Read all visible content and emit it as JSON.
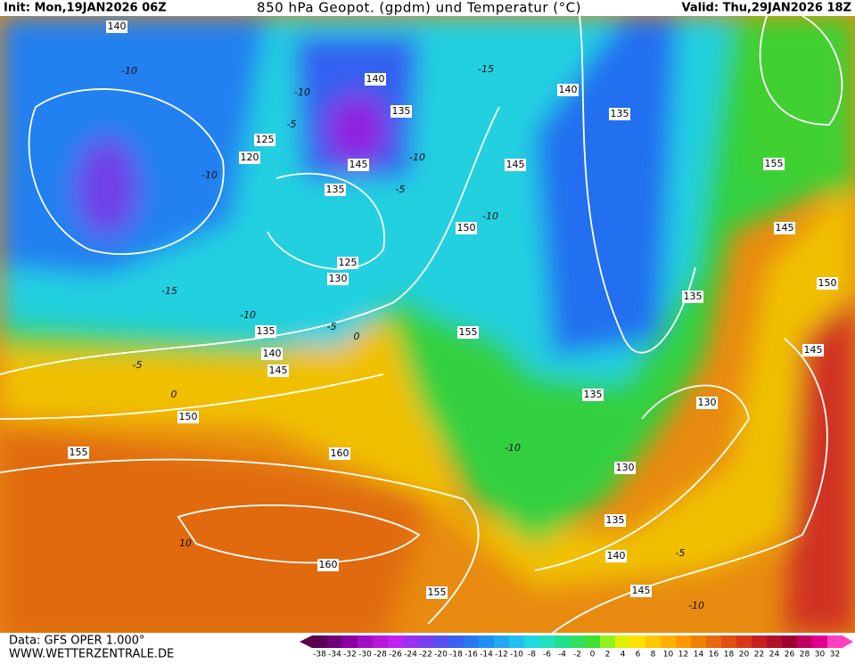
{
  "header": {
    "init": "Init: Mon,19JAN2026 06Z",
    "title": "850 hPa Geopot. (gpdm) und Temperatur (°C)",
    "valid": "Valid: Thu,29JAN2026 18Z"
  },
  "footer": {
    "source": "Data: GFS OPER 1.000°",
    "site": "WWW.WETTERZENTRALE.DE"
  },
  "colorbar": {
    "labels": [
      "-38",
      "-34",
      "-32",
      "-30",
      "-28",
      "-26",
      "-24",
      "-22",
      "-20",
      "-18",
      "-16",
      "-14",
      "-12",
      "-10",
      "-8",
      "-6",
      "-4",
      "-2",
      "0",
      "2",
      "4",
      "6",
      "8",
      "10",
      "12",
      "14",
      "16",
      "18",
      "20",
      "22",
      "24",
      "26",
      "28",
      "30",
      "32"
    ],
    "colors": [
      "#5a0050",
      "#70007a",
      "#8a00a0",
      "#a010c0",
      "#b818d8",
      "#c020f0",
      "#9a30f0",
      "#7a40f0",
      "#5a50f0",
      "#3a60f0",
      "#2a78f0",
      "#2090f0",
      "#20a8f0",
      "#20c0f0",
      "#20d8e0",
      "#20e0c0",
      "#20e090",
      "#30e060",
      "#40e030",
      "#90f020",
      "#e0f000",
      "#ffe000",
      "#ffc800",
      "#ffb000",
      "#ff9800",
      "#f08000",
      "#e86810",
      "#e05010",
      "#d83818",
      "#c82020",
      "#b01028",
      "#a00030",
      "#c00060",
      "#e00090",
      "#ff40c0"
    ]
  },
  "contour_labels": [
    "140",
    "140",
    "135",
    "125",
    "120",
    "145",
    "135",
    "150",
    "145",
    "140",
    "135",
    "155",
    "145",
    "150",
    "135",
    "125",
    "130",
    "135",
    "140",
    "145",
    "155",
    "150",
    "155",
    "160",
    "135",
    "130",
    "130",
    "135",
    "140",
    "145",
    "160",
    "155",
    "145"
  ],
  "temperature_labels": [
    "-10",
    "-10",
    "-5",
    "-10",
    "-10",
    "-5",
    "-10",
    "-15",
    "-10",
    "-5",
    "0",
    "-5",
    "0",
    "-15",
    "10",
    "-5",
    "-10",
    "-10"
  ]
}
